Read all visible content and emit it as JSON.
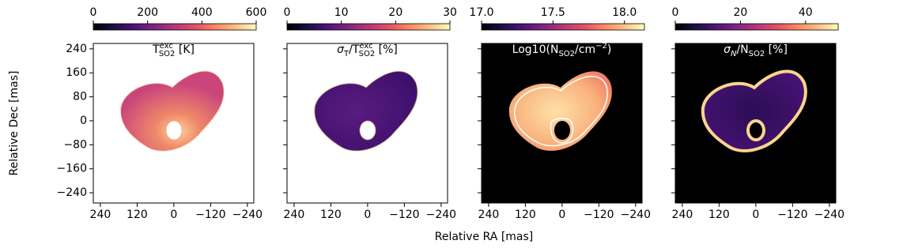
{
  "figure": {
    "xlabel": "Relative RA [mas]",
    "ylabel": "Relative Dec [mas]"
  },
  "chart_data": [
    {
      "type": "heatmap",
      "colormap": "magma",
      "background": "#ffffff",
      "title": [
        {
          "text": "T"
        },
        {
          "text": "exc",
          "style": "super"
        },
        {
          "text": "SO2",
          "style": "sub-under"
        },
        {
          "text": " [K]"
        }
      ],
      "clim": [
        0,
        600
      ],
      "cticks": [
        0,
        200,
        400,
        600
      ],
      "xlim": [
        263,
        -261
      ],
      "ylim": [
        -274,
        258
      ],
      "yticklabels": true,
      "xticks": [
        240,
        120,
        0,
        {
          "value": -120,
          "label": "−120"
        },
        {
          "value": -240,
          "label": "−240"
        }
      ],
      "yticks": [
        240,
        160,
        80,
        0,
        {
          "value": -80,
          "label": "−80"
        },
        {
          "value": -160,
          "label": "−160"
        },
        {
          "value": -240,
          "label": "−240"
        }
      ]
    },
    {
      "type": "heatmap",
      "colormap": "magma",
      "background": "#ffffff",
      "title": [
        {
          "text": "σ",
          "style": "italic"
        },
        {
          "text": "T",
          "style": "sub"
        },
        {
          "text": "/T"
        },
        {
          "text": "exc",
          "style": "super"
        },
        {
          "text": "SO2",
          "style": "sub-under"
        },
        {
          "text": " [%]"
        }
      ],
      "clim": [
        0,
        30
      ],
      "cticks": [
        0,
        10,
        20,
        30
      ],
      "xlim": [
        263,
        -261
      ],
      "ylim": [
        -274,
        258
      ],
      "yticklabels": false,
      "xticks": [
        240,
        120,
        0,
        {
          "value": -120,
          "label": "−120"
        },
        {
          "value": -240,
          "label": "−240"
        }
      ],
      "yticks": [
        240,
        160,
        80,
        0,
        -80,
        -160,
        -240
      ]
    },
    {
      "type": "heatmap",
      "colormap": "magma",
      "background": "#000000",
      "title": [
        {
          "text": "Log10(N"
        },
        {
          "text": "SO2",
          "style": "sub"
        },
        {
          "text": "/cm"
        },
        {
          "text": "−2",
          "style": "super"
        },
        {
          "text": ")"
        }
      ],
      "clim": [
        17.0,
        18.14
      ],
      "cticks": [
        {
          "value": 17,
          "label": "17.0"
        },
        17.5,
        {
          "value": 18,
          "label": "18.0"
        }
      ],
      "xlim": [
        263,
        -261
      ],
      "ylim": [
        -274,
        258
      ],
      "yticklabels": false,
      "xticks": [
        240,
        120,
        0,
        {
          "value": -120,
          "label": "−120"
        },
        {
          "value": -240,
          "label": "−240"
        }
      ],
      "yticks": [
        240,
        160,
        80,
        0,
        -80,
        -160,
        -240
      ]
    },
    {
      "type": "heatmap",
      "colormap": "magma",
      "background": "#000000",
      "title": [
        {
          "text": "σ",
          "style": "italic"
        },
        {
          "text": "N",
          "style": "sub-italic"
        },
        {
          "text": "/N"
        },
        {
          "text": "SO2",
          "style": "sub"
        },
        {
          "text": " [%]"
        }
      ],
      "clim": [
        0,
        50
      ],
      "cticks": [
        0,
        20,
        40
      ],
      "xlim": [
        263,
        -261
      ],
      "ylim": [
        -274,
        258
      ],
      "yticklabels": false,
      "xticks": [
        240,
        120,
        0,
        {
          "value": -120,
          "label": "−120"
        },
        {
          "value": -240,
          "label": "−240"
        }
      ],
      "yticks": [
        240,
        160,
        80,
        0,
        -80,
        -160,
        -240
      ]
    }
  ]
}
